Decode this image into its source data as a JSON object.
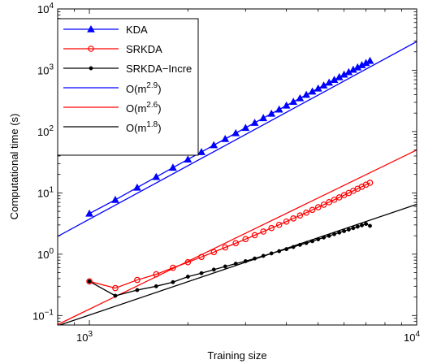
{
  "chart_data": {
    "type": "line",
    "x_scale": "log",
    "y_scale": "log",
    "xlim": [
      800,
      10000
    ],
    "ylim": [
      0.07,
      10000
    ],
    "xlabel": "Training size",
    "ylabel": "Computational time (s)",
    "x_ticks": [
      {
        "value": 1000,
        "base": "10",
        "exp": "3"
      },
      {
        "value": 10000,
        "base": "10",
        "exp": "4"
      }
    ],
    "y_ticks": [
      {
        "value": 0.1,
        "base": "10",
        "exp": "−1"
      },
      {
        "value": 1,
        "base": "10",
        "exp": "0"
      },
      {
        "value": 10,
        "base": "10",
        "exp": "1"
      },
      {
        "value": 100,
        "base": "10",
        "exp": "2"
      },
      {
        "value": 1000,
        "base": "10",
        "exp": "3"
      },
      {
        "value": 10000,
        "base": "10",
        "exp": "4"
      }
    ],
    "legend_position": "top-left",
    "series": [
      {
        "name": "KDA",
        "color": "#0000ff",
        "marker": "triangle",
        "x": [
          1000,
          1200,
          1400,
          1600,
          1800,
          2000,
          2200,
          2400,
          2600,
          2800,
          3000,
          3200,
          3400,
          3600,
          3800,
          4000,
          4200,
          4400,
          4600,
          4800,
          5000,
          5200,
          5400,
          5600,
          5800,
          6000,
          6200,
          6400,
          6600,
          6800,
          7000,
          7200
        ],
        "y": [
          4.6,
          7.7,
          12.2,
          18.2,
          25.8,
          35.1,
          46.4,
          60.0,
          75.8,
          94.2,
          115,
          139,
          166,
          196,
          229,
          266,
          306,
          350,
          398,
          450,
          505,
          566,
          630,
          698,
          772,
          850,
          933,
          1021,
          1114,
          1212,
          1316,
          1425
        ]
      },
      {
        "name": "SRKDA",
        "color": "#ff0000",
        "marker": "circle",
        "x": [
          1000,
          1200,
          1400,
          1600,
          1800,
          2000,
          2200,
          2400,
          2600,
          2800,
          3000,
          3200,
          3400,
          3600,
          3800,
          4000,
          4200,
          4400,
          4600,
          4800,
          5000,
          5200,
          5400,
          5600,
          5800,
          6000,
          6200,
          6400,
          6600,
          6800,
          7000,
          7200
        ],
        "y": [
          0.36,
          0.28,
          0.38,
          0.47,
          0.6,
          0.74,
          0.9,
          1.08,
          1.29,
          1.51,
          1.76,
          2.04,
          2.34,
          2.67,
          3.02,
          3.41,
          3.83,
          4.28,
          4.76,
          5.28,
          5.83,
          6.42,
          7.05,
          7.72,
          8.43,
          9.17,
          9.96,
          10.8,
          11.7,
          12.6,
          13.6,
          14.6
        ]
      },
      {
        "name": "SRKDA−Incre",
        "color": "#000000",
        "marker": "dot",
        "x": [
          1000,
          1200,
          1400,
          1600,
          1800,
          2000,
          2200,
          2400,
          2600,
          2800,
          3000,
          3200,
          3400,
          3600,
          3800,
          4000,
          4200,
          4400,
          4600,
          4800,
          5000,
          5200,
          5400,
          5600,
          5800,
          6000,
          6200,
          6400,
          6600,
          6800,
          7000,
          7200
        ],
        "y": [
          0.36,
          0.21,
          0.26,
          0.3,
          0.35,
          0.43,
          0.49,
          0.56,
          0.63,
          0.7,
          0.77,
          0.85,
          0.94,
          1.03,
          1.12,
          1.21,
          1.31,
          1.42,
          1.52,
          1.63,
          1.75,
          1.87,
          1.99,
          2.12,
          2.25,
          2.38,
          2.52,
          2.66,
          2.81,
          2.96,
          3.12,
          2.9
        ]
      }
    ],
    "reference_lines": [
      {
        "name": "O(m",
        "exp": "2.9",
        "suffix": ")",
        "color": "#0000ff",
        "x": [
          800,
          10000
        ],
        "y": [
          1.95,
          2930
        ]
      },
      {
        "name": "O(m",
        "exp": "2.6",
        "suffix": ")",
        "color": "#ff0000",
        "x": [
          800,
          10000
        ],
        "y": [
          0.071,
          50
        ]
      },
      {
        "name": "O(m",
        "exp": "1.8",
        "suffix": ")",
        "color": "#000000",
        "x": [
          800,
          10000
        ],
        "y": [
          0.068,
          6.5
        ]
      }
    ]
  }
}
